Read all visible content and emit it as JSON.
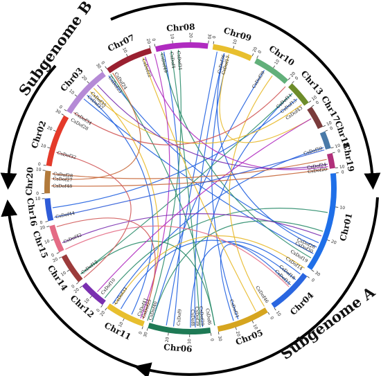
{
  "subgenomes": [
    {
      "label": "Subgenome A"
    },
    {
      "label": "Subgenome B"
    }
  ],
  "chromosomes": [
    {
      "name": "Chr01",
      "color": "#1f6fe8",
      "start": 84,
      "span": 40,
      "ticks": [
        "0",
        "10",
        "20",
        "30"
      ]
    },
    {
      "name": "Chr04",
      "color": "#2a66e0",
      "start": 127,
      "span": 18,
      "ticks": [
        "0",
        "10"
      ]
    },
    {
      "name": "Chr05",
      "color": "#d6a51f",
      "start": 148,
      "span": 21,
      "ticks": [
        "0",
        "10",
        "20",
        "30"
      ]
    },
    {
      "name": "Chr06",
      "color": "#1e7a55",
      "start": 172,
      "span": 25,
      "ticks": [
        "0",
        "10",
        "20",
        "30"
      ]
    },
    {
      "name": "Chr11",
      "color": "#e8bf2e",
      "start": 199,
      "span": 16,
      "ticks": [
        "0",
        "10",
        "20"
      ]
    },
    {
      "name": "Chr12",
      "color": "#7a2fb0",
      "start": 217,
      "span": 11,
      "ticks": [
        "0",
        "10",
        "20"
      ]
    },
    {
      "name": "Chr14",
      "color": "#9c3b3b",
      "start": 230,
      "span": 12,
      "ticks": [
        "0",
        "10",
        "20"
      ]
    },
    {
      "name": "Chr15",
      "color": "#e46b85",
      "start": 244,
      "span": 11,
      "ticks": [
        "0",
        "10",
        "20"
      ]
    },
    {
      "name": "Chr16",
      "color": "#2e5bd8",
      "start": 257,
      "span": 9,
      "ticks": [
        "0",
        "10"
      ]
    },
    {
      "name": "Chr20",
      "color": "#b27a3b",
      "start": 268,
      "span": 9,
      "ticks": [
        "0",
        "10"
      ]
    },
    {
      "name": "Chr02",
      "color": "#e43a2a",
      "start": 279,
      "span": 21,
      "ticks": [
        "0",
        "10",
        "20",
        "30"
      ]
    },
    {
      "name": "Chr03",
      "color": "#b58ad6",
      "start": 302,
      "span": 21,
      "ticks": [
        "0",
        "10",
        "20",
        "30"
      ]
    },
    {
      "name": "Chr07",
      "color": "#9a2030",
      "start": 325,
      "span": 19,
      "ticks": [
        "0",
        "10",
        "20"
      ]
    },
    {
      "name": "Chr08",
      "color": "#b02bc0",
      "start": 346,
      "span": 21,
      "ticks": [
        "0",
        "10",
        "20",
        "30"
      ]
    },
    {
      "name": "Chr09",
      "color": "#e8bf2e",
      "start": 9,
      "span": 16,
      "ticks": [
        "0",
        "10",
        "20"
      ]
    },
    {
      "name": "Chr10",
      "color": "#62b07a",
      "start": 27,
      "span": 15,
      "ticks": [
        "0",
        "10",
        "20"
      ]
    },
    {
      "name": "Chr13",
      "color": "#6d8c2a",
      "start": 44,
      "span": 10,
      "ticks": [
        "0",
        "10"
      ]
    },
    {
      "name": "Chr17",
      "color": "#7a3b3b",
      "start": 56,
      "span": 9,
      "ticks": [
        "0",
        "10"
      ]
    },
    {
      "name": "Chr18",
      "color": "#4a7aa8",
      "start": 67,
      "span": 7,
      "ticks": [
        "0",
        "10"
      ]
    },
    {
      "name": "Chr19",
      "color": "#b0307a",
      "start": 76,
      "span": 6,
      "ticks": [
        "0",
        "10"
      ]
    }
  ],
  "genes": [
    {
      "label": "CsDof26",
      "angle": 115.5
    },
    {
      "label": "CsDof30",
      "angle": 117.5
    },
    {
      "label": "CsDof19",
      "angle": 122
    },
    {
      "label": "CsDof14",
      "angle": 126
    },
    {
      "label": "CsDof18",
      "angle": 131
    },
    {
      "label": "CsDof15",
      "angle": 134
    },
    {
      "label": "CsDof46",
      "angle": 146
    },
    {
      "label": "CsDof21",
      "angle": 160
    },
    {
      "label": "CsDof6",
      "angle": 172
    },
    {
      "label": "CsDof29",
      "angle": 175
    },
    {
      "label": "CsDof39",
      "angle": 177
    },
    {
      "label": "CsDof8",
      "angle": 179
    },
    {
      "label": "CsDof9",
      "angle": 185
    },
    {
      "label": "CsDof40",
      "angle": 197
    },
    {
      "label": "CsDof25",
      "angle": 200
    },
    {
      "label": "CsDof41",
      "angle": 202
    },
    {
      "label": "CsDof33",
      "angle": 213
    },
    {
      "label": "CsDof10",
      "angle": 220
    },
    {
      "label": "CsDof12",
      "angle": 232
    },
    {
      "label": "CsDof42",
      "angle": 247
    },
    {
      "label": "CsDof44",
      "angle": 258
    },
    {
      "label": "CsDof48",
      "angle": 271
    },
    {
      "label": "CsDof27",
      "angle": 274
    },
    {
      "label": "CsDof28",
      "angle": 276
    },
    {
      "label": "CsDof32",
      "angle": 285
    },
    {
      "label": "CsDof28",
      "angle": 300
    },
    {
      "label": "CsDof34",
      "angle": 303
    },
    {
      "label": "CsDof37",
      "angle": 312
    },
    {
      "label": "CsDof35",
      "angle": 314
    },
    {
      "label": "CsDof23",
      "angle": 324
    },
    {
      "label": "CsDof24",
      "angle": 327
    },
    {
      "label": "CsDof22",
      "angle": 340
    },
    {
      "label": "CsDof49",
      "angle": 348
    },
    {
      "label": "CsDof4",
      "angle": 352
    },
    {
      "label": "CsDof31",
      "angle": 355
    },
    {
      "label": "CsDof36",
      "angle": 14
    },
    {
      "label": "CsDof17",
      "angle": 16
    },
    {
      "label": "CsDof39",
      "angle": 32
    },
    {
      "label": "CsDof11",
      "angle": 47
    },
    {
      "label": "CsDof13",
      "angle": 50
    },
    {
      "label": "CsDof43",
      "angle": 54
    },
    {
      "label": "CsDof50",
      "angle": 73
    },
    {
      "label": "CsDof24",
      "angle": 80
    },
    {
      "label": "CsDof20",
      "angle": 82
    }
  ],
  "links": [
    {
      "from": 14,
      "to": 115,
      "color": "#1f5fe0"
    },
    {
      "from": 16,
      "to": 160,
      "color": "#1f5fe0"
    },
    {
      "from": 14,
      "to": 178,
      "color": "#1f5fe0"
    },
    {
      "from": 11,
      "to": 190,
      "color": "#1f5fe0"
    },
    {
      "from": 32,
      "to": 196,
      "color": "#1f5fe0"
    },
    {
      "from": 47,
      "to": 175,
      "color": "#1f5fe0"
    },
    {
      "from": 50,
      "to": 262,
      "color": "#1f5fe0"
    },
    {
      "from": 73,
      "to": 214,
      "color": "#1f5fe0"
    },
    {
      "from": 118,
      "to": 310,
      "color": "#1f5fe0"
    },
    {
      "from": 128,
      "to": 180,
      "color": "#1f5fe0"
    },
    {
      "from": 131,
      "to": 210,
      "color": "#1f5fe0"
    },
    {
      "from": 134,
      "to": 162,
      "color": "#1f5fe0"
    },
    {
      "from": 312,
      "to": 205,
      "color": "#1f5fe0"
    },
    {
      "from": 324,
      "to": 113,
      "color": "#1f5fe0"
    },
    {
      "from": 349,
      "to": 187,
      "color": "#1f5fe0"
    },
    {
      "from": 348,
      "to": 120,
      "color": "#2a8c6a"
    },
    {
      "from": 352,
      "to": 176,
      "color": "#2a8c6a"
    },
    {
      "from": 355,
      "to": 198,
      "color": "#2a8c6a"
    },
    {
      "from": 100,
      "to": 218,
      "color": "#2a8c6a"
    },
    {
      "from": 108,
      "to": 196,
      "color": "#2a8c6a"
    },
    {
      "from": 232,
      "to": 170,
      "color": "#2a8c6a"
    },
    {
      "from": 47,
      "to": 232,
      "color": "#2a8c6a"
    },
    {
      "from": 325,
      "to": 170,
      "color": "#2a8c6a"
    },
    {
      "from": 314,
      "to": 53,
      "color": "#e8b92a"
    },
    {
      "from": 316,
      "to": 200,
      "color": "#e8b92a"
    },
    {
      "from": 340,
      "to": 152,
      "color": "#e8b92a"
    },
    {
      "from": 36,
      "to": 148,
      "color": "#e8b92a"
    },
    {
      "from": 16,
      "to": 60,
      "color": "#e8b92a"
    },
    {
      "from": 213,
      "to": 125,
      "color": "#e8b92a"
    },
    {
      "from": 341,
      "to": 81,
      "color": "#b02bc0"
    },
    {
      "from": 345,
      "to": 201,
      "color": "#b02bc0"
    },
    {
      "from": 222,
      "to": 60,
      "color": "#b02bc0"
    },
    {
      "from": 271,
      "to": 82,
      "color": "#c8683a"
    },
    {
      "from": 274,
      "to": 326,
      "color": "#c8683a"
    },
    {
      "from": 276,
      "to": 78,
      "color": "#c8683a"
    },
    {
      "from": 285,
      "to": 230,
      "color": "#d05858"
    },
    {
      "from": 254,
      "to": 200,
      "color": "#d05858"
    },
    {
      "from": 303,
      "to": 43,
      "color": "#d05858"
    },
    {
      "from": 247,
      "to": 110,
      "color": "#7a2fb0"
    },
    {
      "from": 80,
      "to": 318,
      "color": "#7a2fb0"
    },
    {
      "from": 258,
      "to": 74,
      "color": "#2e5bd8"
    },
    {
      "from": 244,
      "to": 135,
      "color": "#e46b85"
    }
  ]
}
